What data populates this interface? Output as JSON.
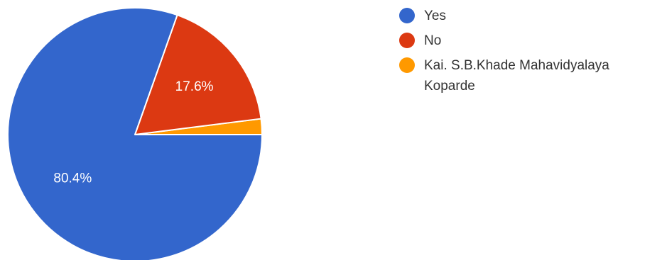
{
  "chart_data": {
    "type": "pie",
    "title": "",
    "categories": [
      "Yes",
      "No",
      "Kai. S.B.Khade Mahavidyalaya Koparde"
    ],
    "values": [
      80.4,
      17.6,
      2.0
    ],
    "value_labels": [
      "80.4%",
      "17.6%",
      ""
    ],
    "colors": [
      "#3366cc",
      "#dc3912",
      "#ff9900"
    ],
    "legend_position": "right"
  }
}
